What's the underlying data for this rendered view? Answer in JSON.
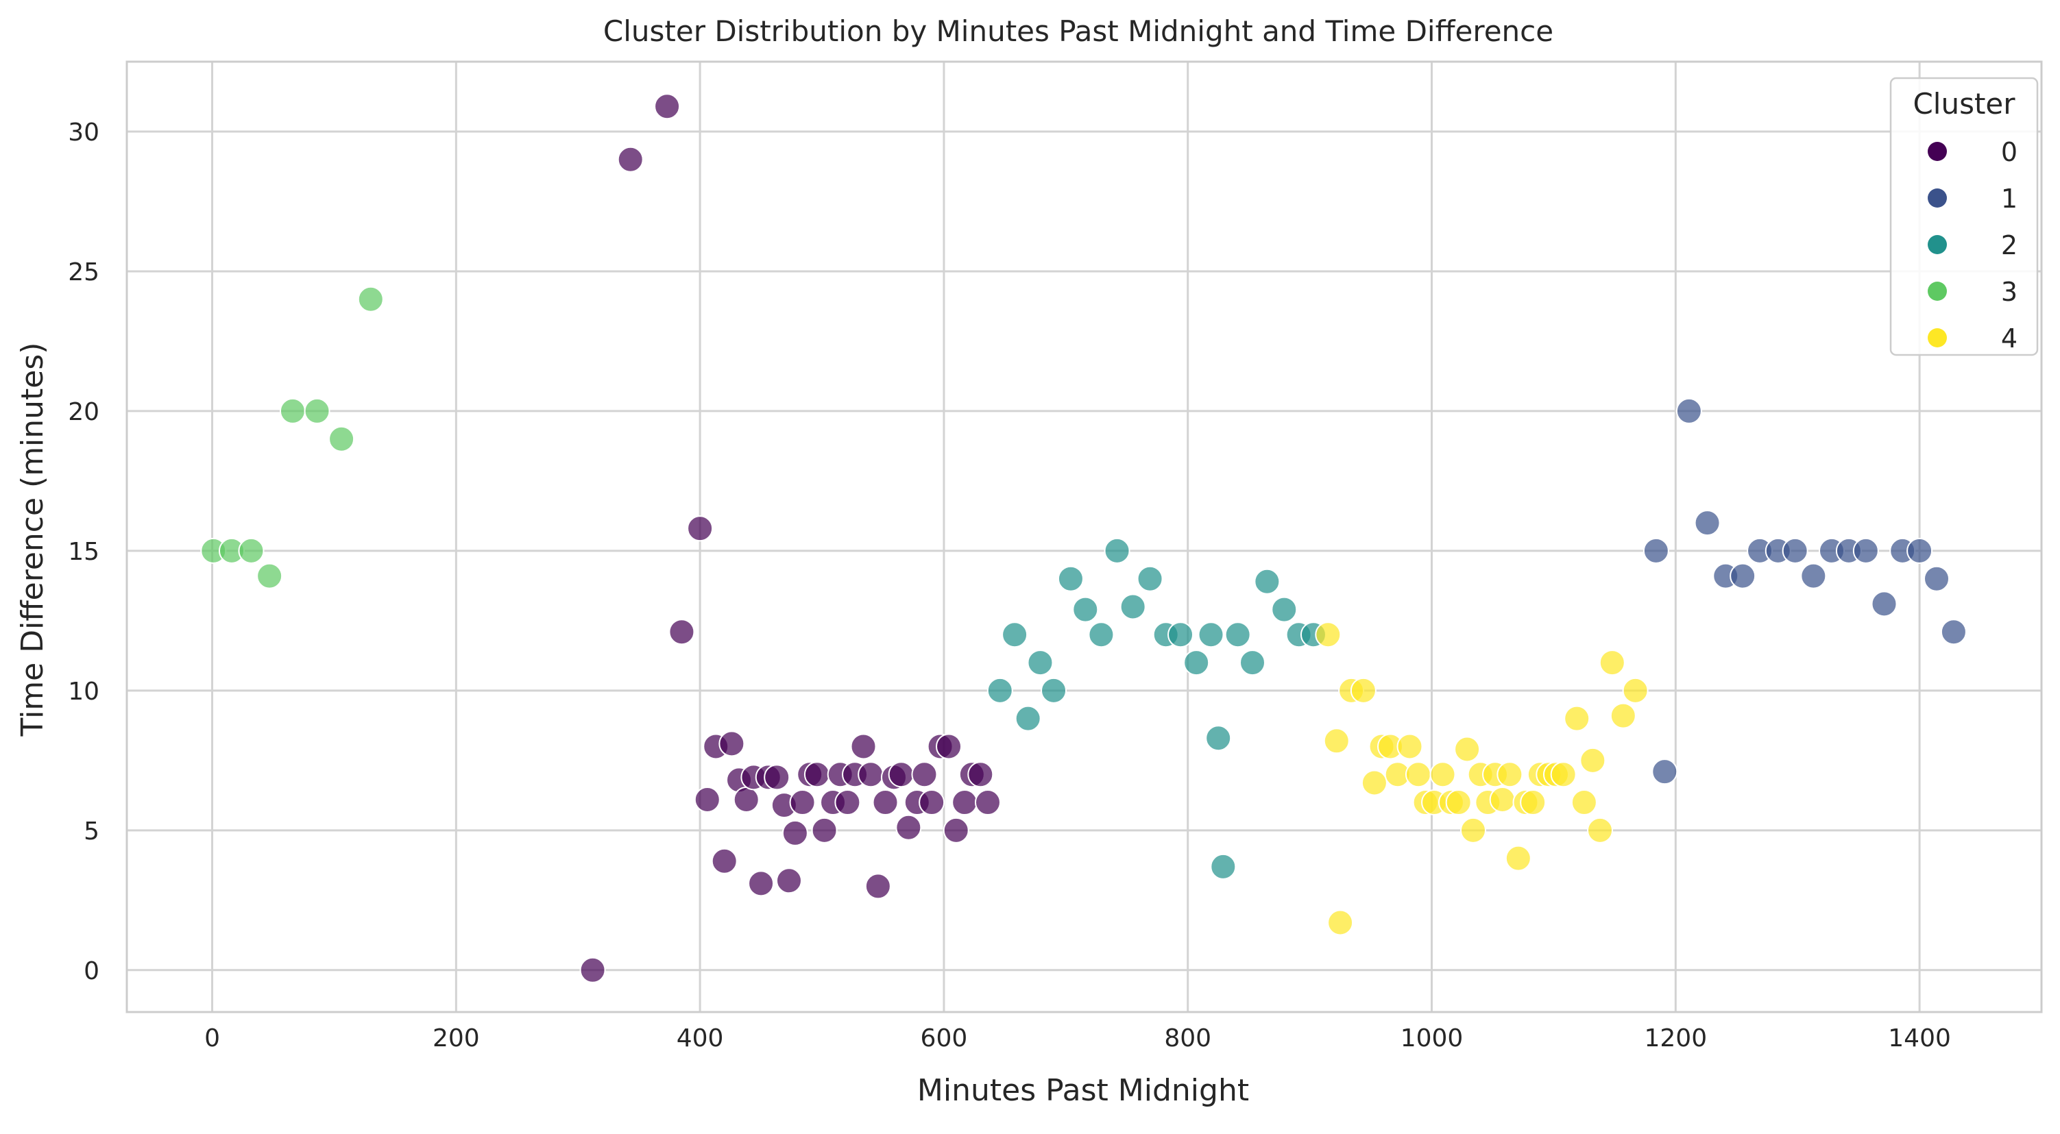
{
  "chart_data": {
    "type": "scatter",
    "title": "Cluster Distribution by Minutes Past Midnight and Time Difference",
    "xlabel": "Minutes Past Midnight",
    "ylabel": "Time Difference (minutes)",
    "xlim": [
      -70,
      1500
    ],
    "ylim": [
      -1.5,
      32.5
    ],
    "xticks": [
      "0",
      "200",
      "400",
      "600",
      "800",
      "1000",
      "1200",
      "1400"
    ],
    "yticks": [
      "0",
      "5",
      "10",
      "15",
      "20",
      "25",
      "30"
    ],
    "grid": true,
    "legend": {
      "title": "Cluster",
      "placement": "top-right"
    },
    "series": [
      {
        "name": "0",
        "color": "#440154",
        "points": [
          [
            312,
            0
          ],
          [
            343,
            29
          ],
          [
            373,
            30.9
          ],
          [
            385,
            12.1
          ],
          [
            400,
            15.8
          ],
          [
            406,
            6.1
          ],
          [
            413,
            8
          ],
          [
            420,
            3.9
          ],
          [
            426,
            8.1
          ],
          [
            432,
            6.8
          ],
          [
            438,
            6.1
          ],
          [
            444,
            6.9
          ],
          [
            450,
            3.1
          ],
          [
            456,
            6.9
          ],
          [
            463,
            6.9
          ],
          [
            469,
            5.9
          ],
          [
            473,
            3.2
          ],
          [
            478,
            4.9
          ],
          [
            484,
            6
          ],
          [
            490,
            7
          ],
          [
            496,
            7
          ],
          [
            502,
            5
          ],
          [
            509,
            6
          ],
          [
            515,
            7
          ],
          [
            521,
            6
          ],
          [
            527,
            7
          ],
          [
            534,
            8
          ],
          [
            540,
            7
          ],
          [
            546,
            3
          ],
          [
            552,
            6
          ],
          [
            559,
            6.9
          ],
          [
            565,
            7
          ],
          [
            571,
            5.1
          ],
          [
            578,
            6
          ],
          [
            584,
            7
          ],
          [
            590,
            6
          ],
          [
            597,
            8
          ],
          [
            604,
            8
          ],
          [
            610,
            5
          ],
          [
            617,
            6
          ],
          [
            623,
            7
          ],
          [
            630,
            7
          ],
          [
            636,
            6
          ]
        ]
      },
      {
        "name": "1",
        "color": "#3b528b",
        "points": [
          [
            1184,
            15
          ],
          [
            1191,
            7.1
          ],
          [
            1211,
            20
          ],
          [
            1226,
            16
          ],
          [
            1241,
            14.1
          ],
          [
            1255,
            14.1
          ],
          [
            1269,
            15
          ],
          [
            1284,
            15
          ],
          [
            1298,
            15
          ],
          [
            1313,
            14.1
          ],
          [
            1328,
            15
          ],
          [
            1342,
            15
          ],
          [
            1356,
            15
          ],
          [
            1371,
            13.1
          ],
          [
            1386,
            15
          ],
          [
            1400,
            15
          ],
          [
            1414,
            14
          ],
          [
            1428,
            12.1
          ]
        ]
      },
      {
        "name": "2",
        "color": "#21918c",
        "points": [
          [
            646,
            10
          ],
          [
            658,
            12
          ],
          [
            669,
            9
          ],
          [
            679,
            11
          ],
          [
            690,
            10
          ],
          [
            704,
            14
          ],
          [
            716,
            12.9
          ],
          [
            729,
            12
          ],
          [
            742,
            15
          ],
          [
            755,
            13
          ],
          [
            769,
            14
          ],
          [
            782,
            12
          ],
          [
            794,
            12
          ],
          [
            807,
            11
          ],
          [
            819,
            12
          ],
          [
            825,
            8.3
          ],
          [
            829,
            3.7
          ],
          [
            841,
            12
          ],
          [
            853,
            11
          ],
          [
            865,
            13.9
          ],
          [
            879,
            12.9
          ],
          [
            891,
            12
          ],
          [
            903,
            12
          ]
        ]
      },
      {
        "name": "3",
        "color": "#5ec962",
        "points": [
          [
            1,
            15
          ],
          [
            16,
            15
          ],
          [
            32,
            15
          ],
          [
            47,
            14.1
          ],
          [
            66,
            20
          ],
          [
            86,
            20
          ],
          [
            106,
            19
          ],
          [
            130,
            24
          ]
        ]
      },
      {
        "name": "4",
        "color": "#fde725",
        "points": [
          [
            915,
            12
          ],
          [
            922,
            8.2
          ],
          [
            925,
            1.7
          ],
          [
            934,
            10
          ],
          [
            944,
            10
          ],
          [
            953,
            6.7
          ],
          [
            959,
            8
          ],
          [
            966,
            8
          ],
          [
            972,
            7
          ],
          [
            982,
            8
          ],
          [
            989,
            7
          ],
          [
            995,
            6
          ],
          [
            1002,
            6
          ],
          [
            1009,
            7
          ],
          [
            1016,
            6
          ],
          [
            1022,
            6
          ],
          [
            1029,
            7.9
          ],
          [
            1034,
            5
          ],
          [
            1040,
            7
          ],
          [
            1046,
            6
          ],
          [
            1052,
            7
          ],
          [
            1058,
            6.1
          ],
          [
            1064,
            7
          ],
          [
            1071,
            4
          ],
          [
            1077,
            6
          ],
          [
            1083,
            6
          ],
          [
            1089,
            7
          ],
          [
            1096,
            7
          ],
          [
            1102,
            7
          ],
          [
            1108,
            7
          ],
          [
            1119,
            9
          ],
          [
            1125,
            6
          ],
          [
            1132,
            7.5
          ],
          [
            1138,
            5
          ],
          [
            1148,
            11
          ],
          [
            1157,
            9.1
          ],
          [
            1167,
            10
          ]
        ]
      }
    ]
  }
}
